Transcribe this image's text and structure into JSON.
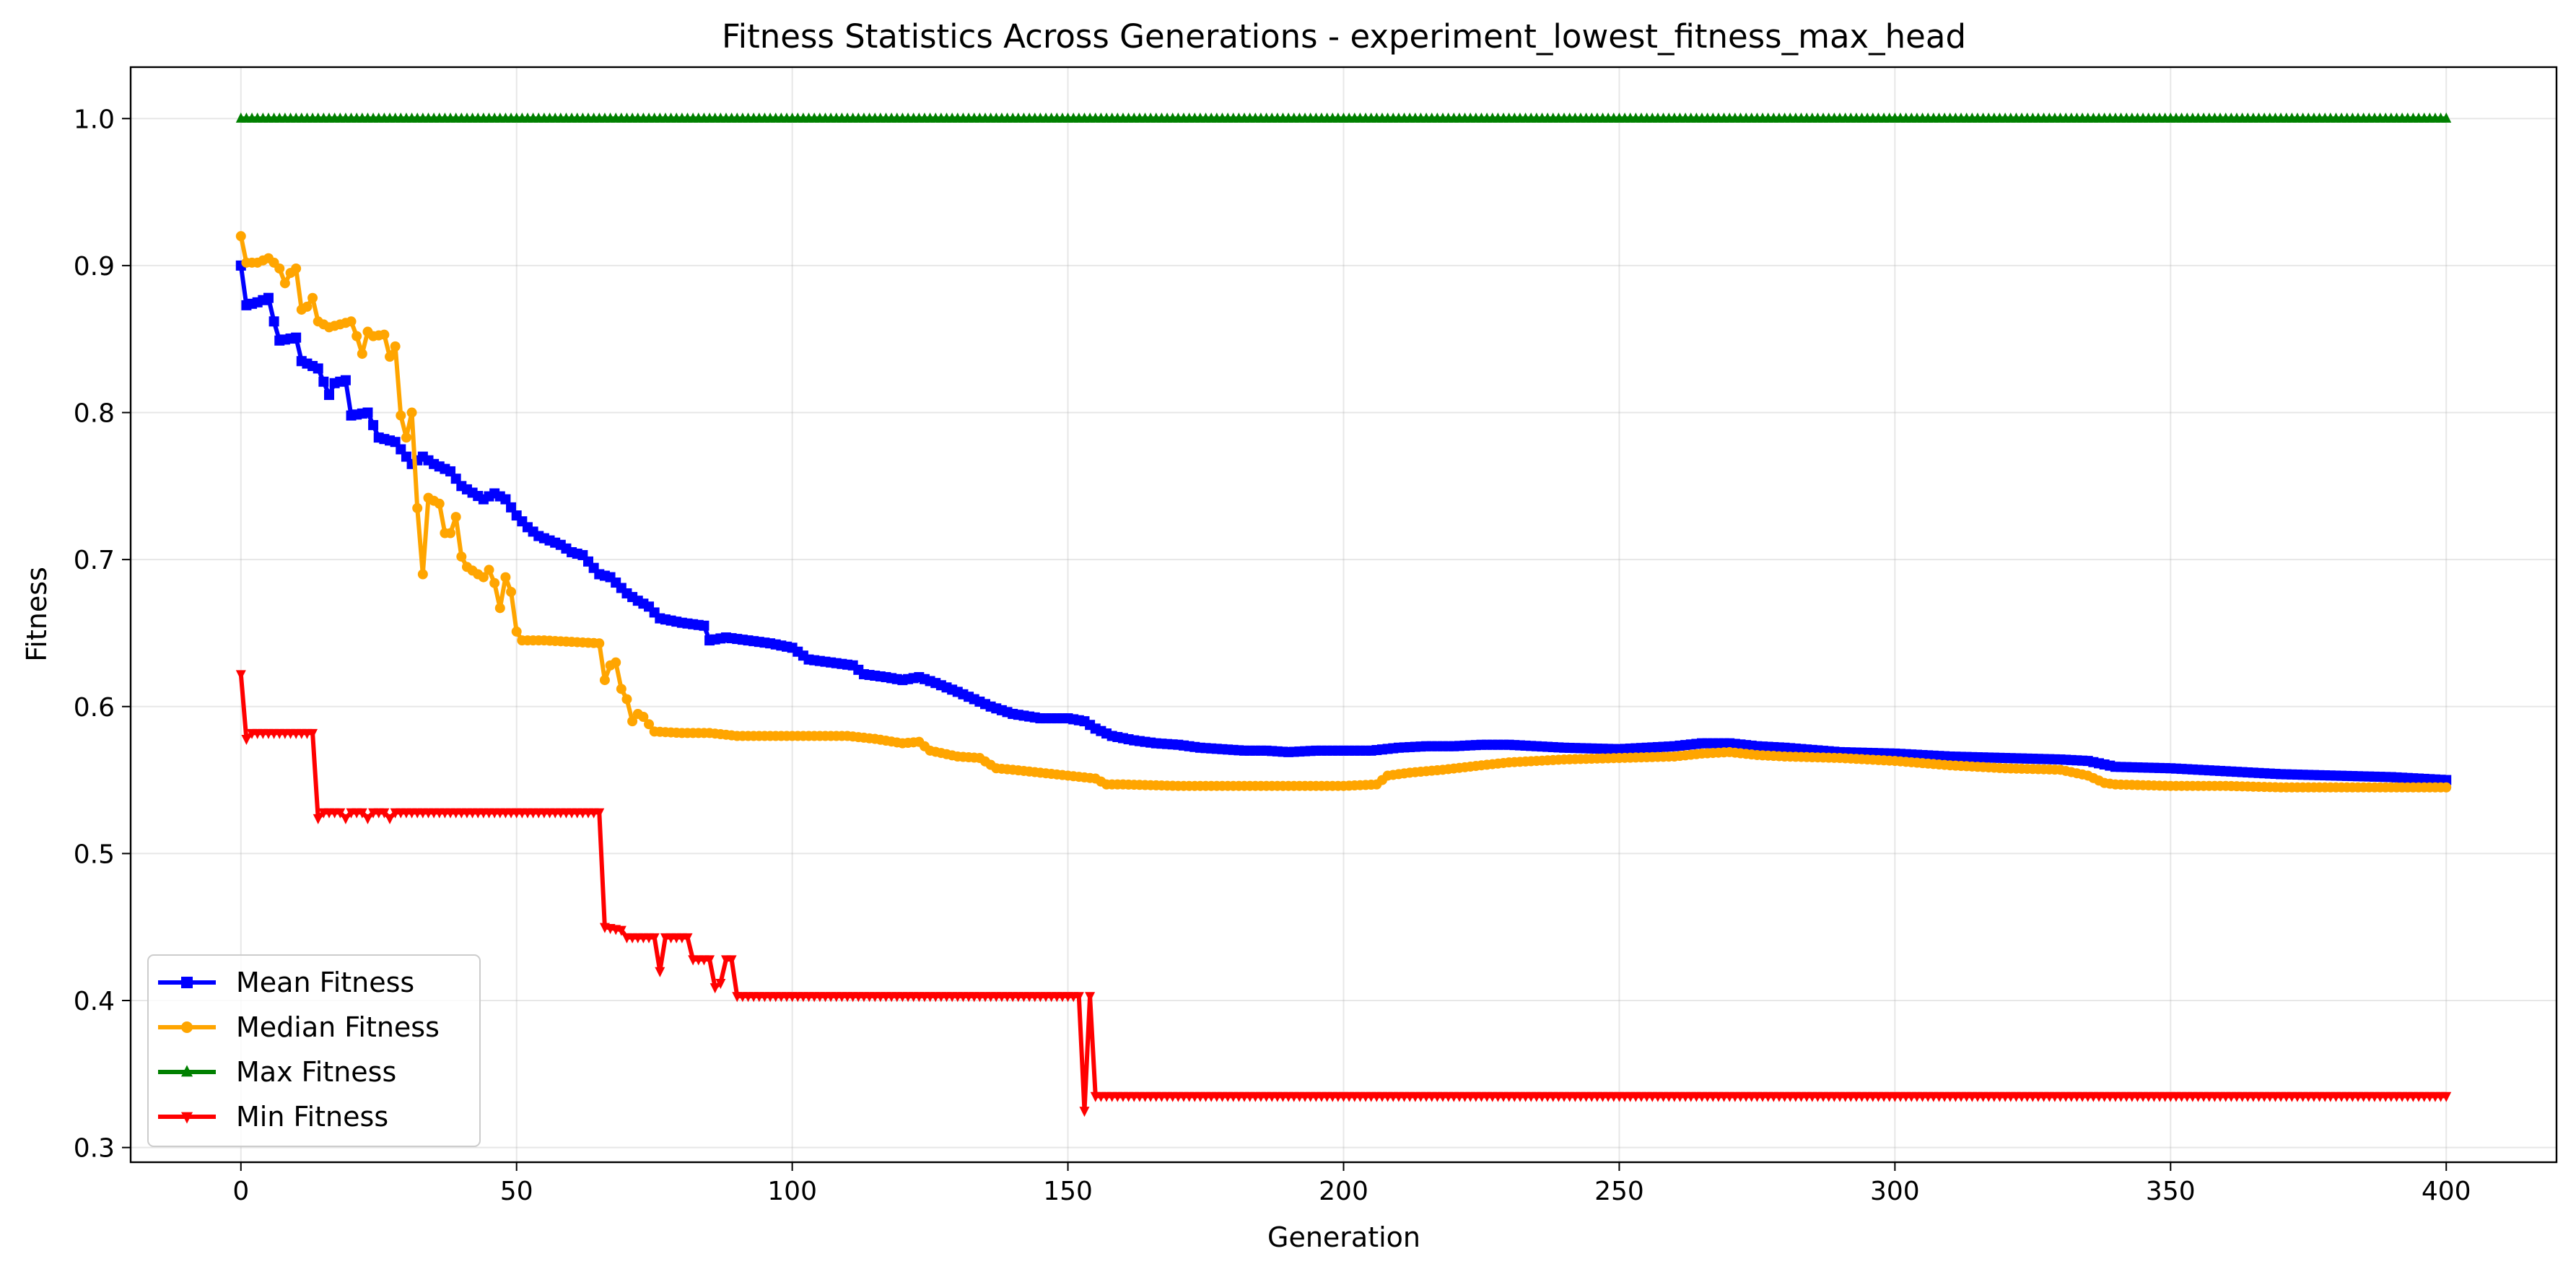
{
  "chart_data": {
    "type": "line",
    "title": "Fitness Statistics Across Generations - experiment_lowest_fitness_max_head",
    "xlabel": "Generation",
    "ylabel": "Fitness",
    "xlim": [
      -20,
      420
    ],
    "ylim": [
      0.29,
      1.035
    ],
    "xticks": [
      0,
      50,
      100,
      150,
      200,
      250,
      300,
      350,
      400
    ],
    "yticks": [
      0.3,
      0.4,
      0.5,
      0.6,
      0.7,
      0.8,
      0.9,
      1.0
    ],
    "ytick_labels": [
      "0.3",
      "0.4",
      "0.5",
      "0.6",
      "0.7",
      "0.8",
      "0.9",
      "1.0"
    ],
    "grid": true,
    "legend_position": "lower-left",
    "series": [
      {
        "name": "Mean Fitness",
        "color": "#0000ff",
        "marker": "square",
        "points": [
          [
            0,
            0.9
          ],
          [
            1,
            0.873
          ],
          [
            3,
            0.875
          ],
          [
            5,
            0.878
          ],
          [
            6,
            0.862
          ],
          [
            7,
            0.849
          ],
          [
            10,
            0.851
          ],
          [
            11,
            0.835
          ],
          [
            14,
            0.83
          ],
          [
            16,
            0.812
          ],
          [
            17,
            0.82
          ],
          [
            19,
            0.822
          ],
          [
            20,
            0.798
          ],
          [
            23,
            0.8
          ],
          [
            25,
            0.783
          ],
          [
            28,
            0.78
          ],
          [
            31,
            0.765
          ],
          [
            33,
            0.77
          ],
          [
            35,
            0.765
          ],
          [
            38,
            0.76
          ],
          [
            40,
            0.75
          ],
          [
            44,
            0.741
          ],
          [
            46,
            0.745
          ],
          [
            48,
            0.741
          ],
          [
            50,
            0.73
          ],
          [
            52,
            0.722
          ],
          [
            54,
            0.716
          ],
          [
            58,
            0.71
          ],
          [
            60,
            0.705
          ],
          [
            62,
            0.703
          ],
          [
            65,
            0.69
          ],
          [
            67,
            0.688
          ],
          [
            70,
            0.677
          ],
          [
            72,
            0.672
          ],
          [
            74,
            0.668
          ],
          [
            76,
            0.66
          ],
          [
            80,
            0.657
          ],
          [
            84,
            0.655
          ],
          [
            85,
            0.645
          ],
          [
            88,
            0.647
          ],
          [
            92,
            0.645
          ],
          [
            96,
            0.643
          ],
          [
            100,
            0.64
          ],
          [
            103,
            0.632
          ],
          [
            107,
            0.63
          ],
          [
            111,
            0.628
          ],
          [
            113,
            0.622
          ],
          [
            117,
            0.62
          ],
          [
            120,
            0.618
          ],
          [
            123,
            0.62
          ],
          [
            126,
            0.616
          ],
          [
            130,
            0.61
          ],
          [
            133,
            0.605
          ],
          [
            136,
            0.6
          ],
          [
            140,
            0.595
          ],
          [
            145,
            0.592
          ],
          [
            150,
            0.592
          ],
          [
            153,
            0.59
          ],
          [
            155,
            0.585
          ],
          [
            158,
            0.58
          ],
          [
            162,
            0.577
          ],
          [
            166,
            0.575
          ],
          [
            170,
            0.574
          ],
          [
            174,
            0.572
          ],
          [
            178,
            0.571
          ],
          [
            182,
            0.57
          ],
          [
            186,
            0.57
          ],
          [
            190,
            0.569
          ],
          [
            195,
            0.57
          ],
          [
            200,
            0.57
          ],
          [
            205,
            0.57
          ],
          [
            210,
            0.572
          ],
          [
            215,
            0.573
          ],
          [
            220,
            0.573
          ],
          [
            225,
            0.574
          ],
          [
            230,
            0.574
          ],
          [
            240,
            0.572
          ],
          [
            250,
            0.571
          ],
          [
            260,
            0.573
          ],
          [
            265,
            0.575
          ],
          [
            270,
            0.575
          ],
          [
            275,
            0.573
          ],
          [
            280,
            0.572
          ],
          [
            290,
            0.569
          ],
          [
            300,
            0.568
          ],
          [
            310,
            0.566
          ],
          [
            320,
            0.565
          ],
          [
            330,
            0.564
          ],
          [
            335,
            0.563
          ],
          [
            340,
            0.559
          ],
          [
            350,
            0.558
          ],
          [
            360,
            0.556
          ],
          [
            370,
            0.554
          ],
          [
            380,
            0.553
          ],
          [
            390,
            0.552
          ],
          [
            400,
            0.55
          ]
        ]
      },
      {
        "name": "Median Fitness",
        "color": "#ffa500",
        "marker": "circle",
        "points": [
          [
            0,
            0.92
          ],
          [
            1,
            0.902
          ],
          [
            3,
            0.902
          ],
          [
            5,
            0.905
          ],
          [
            6,
            0.902
          ],
          [
            7,
            0.898
          ],
          [
            8,
            0.888
          ],
          [
            9,
            0.895
          ],
          [
            10,
            0.898
          ],
          [
            11,
            0.87
          ],
          [
            12,
            0.872
          ],
          [
            13,
            0.878
          ],
          [
            14,
            0.862
          ],
          [
            16,
            0.858
          ],
          [
            18,
            0.86
          ],
          [
            20,
            0.862
          ],
          [
            21,
            0.852
          ],
          [
            22,
            0.84
          ],
          [
            23,
            0.855
          ],
          [
            24,
            0.852
          ],
          [
            26,
            0.853
          ],
          [
            27,
            0.838
          ],
          [
            28,
            0.845
          ],
          [
            29,
            0.798
          ],
          [
            30,
            0.783
          ],
          [
            31,
            0.8
          ],
          [
            32,
            0.735
          ],
          [
            33,
            0.69
          ],
          [
            34,
            0.742
          ],
          [
            36,
            0.738
          ],
          [
            37,
            0.718
          ],
          [
            38,
            0.718
          ],
          [
            39,
            0.729
          ],
          [
            40,
            0.702
          ],
          [
            41,
            0.695
          ],
          [
            43,
            0.69
          ],
          [
            44,
            0.688
          ],
          [
            45,
            0.693
          ],
          [
            46,
            0.684
          ],
          [
            47,
            0.667
          ],
          [
            48,
            0.688
          ],
          [
            49,
            0.678
          ],
          [
            50,
            0.651
          ],
          [
            51,
            0.645
          ],
          [
            55,
            0.645
          ],
          [
            60,
            0.644
          ],
          [
            65,
            0.643
          ],
          [
            66,
            0.618
          ],
          [
            67,
            0.628
          ],
          [
            68,
            0.63
          ],
          [
            69,
            0.612
          ],
          [
            70,
            0.605
          ],
          [
            71,
            0.59
          ],
          [
            72,
            0.595
          ],
          [
            73,
            0.593
          ],
          [
            75,
            0.583
          ],
          [
            80,
            0.582
          ],
          [
            85,
            0.582
          ],
          [
            90,
            0.58
          ],
          [
            95,
            0.58
          ],
          [
            100,
            0.58
          ],
          [
            105,
            0.58
          ],
          [
            110,
            0.58
          ],
          [
            115,
            0.578
          ],
          [
            120,
            0.575
          ],
          [
            123,
            0.576
          ],
          [
            125,
            0.57
          ],
          [
            130,
            0.566
          ],
          [
            134,
            0.565
          ],
          [
            137,
            0.558
          ],
          [
            140,
            0.557
          ],
          [
            145,
            0.555
          ],
          [
            150,
            0.553
          ],
          [
            155,
            0.551
          ],
          [
            157,
            0.547
          ],
          [
            160,
            0.547
          ],
          [
            170,
            0.546
          ],
          [
            180,
            0.546
          ],
          [
            190,
            0.546
          ],
          [
            200,
            0.546
          ],
          [
            206,
            0.547
          ],
          [
            208,
            0.553
          ],
          [
            212,
            0.555
          ],
          [
            218,
            0.557
          ],
          [
            225,
            0.56
          ],
          [
            230,
            0.562
          ],
          [
            240,
            0.564
          ],
          [
            250,
            0.565
          ],
          [
            260,
            0.566
          ],
          [
            265,
            0.568
          ],
          [
            270,
            0.569
          ],
          [
            275,
            0.567
          ],
          [
            280,
            0.566
          ],
          [
            290,
            0.565
          ],
          [
            300,
            0.563
          ],
          [
            310,
            0.56
          ],
          [
            320,
            0.558
          ],
          [
            330,
            0.557
          ],
          [
            335,
            0.553
          ],
          [
            338,
            0.548
          ],
          [
            340,
            0.547
          ],
          [
            350,
            0.546
          ],
          [
            360,
            0.546
          ],
          [
            370,
            0.545
          ],
          [
            380,
            0.545
          ],
          [
            390,
            0.545
          ],
          [
            400,
            0.545
          ]
        ]
      },
      {
        "name": "Max Fitness",
        "color": "#008000",
        "marker": "triangle-up",
        "points": [
          [
            0,
            1.0
          ],
          [
            400,
            1.0
          ]
        ]
      },
      {
        "name": "Min Fitness",
        "color": "#ff0000",
        "marker": "triangle-down",
        "points": [
          [
            0,
            0.622
          ],
          [
            1,
            0.578
          ],
          [
            2,
            0.582
          ],
          [
            13,
            0.582
          ],
          [
            14,
            0.524
          ],
          [
            15,
            0.528
          ],
          [
            18,
            0.528
          ],
          [
            19,
            0.524
          ],
          [
            20,
            0.528
          ],
          [
            22,
            0.528
          ],
          [
            23,
            0.524
          ],
          [
            24,
            0.528
          ],
          [
            26,
            0.528
          ],
          [
            27,
            0.524
          ],
          [
            28,
            0.528
          ],
          [
            65,
            0.528
          ],
          [
            66,
            0.45
          ],
          [
            69,
            0.448
          ],
          [
            70,
            0.443
          ],
          [
            75,
            0.443
          ],
          [
            76,
            0.42
          ],
          [
            77,
            0.443
          ],
          [
            81,
            0.443
          ],
          [
            82,
            0.428
          ],
          [
            85,
            0.428
          ],
          [
            86,
            0.409
          ],
          [
            87,
            0.412
          ],
          [
            88,
            0.428
          ],
          [
            89,
            0.428
          ],
          [
            90,
            0.403
          ],
          [
            152,
            0.403
          ],
          [
            153,
            0.325
          ],
          [
            154,
            0.403
          ],
          [
            155,
            0.335
          ],
          [
            400,
            0.335
          ]
        ]
      }
    ]
  }
}
